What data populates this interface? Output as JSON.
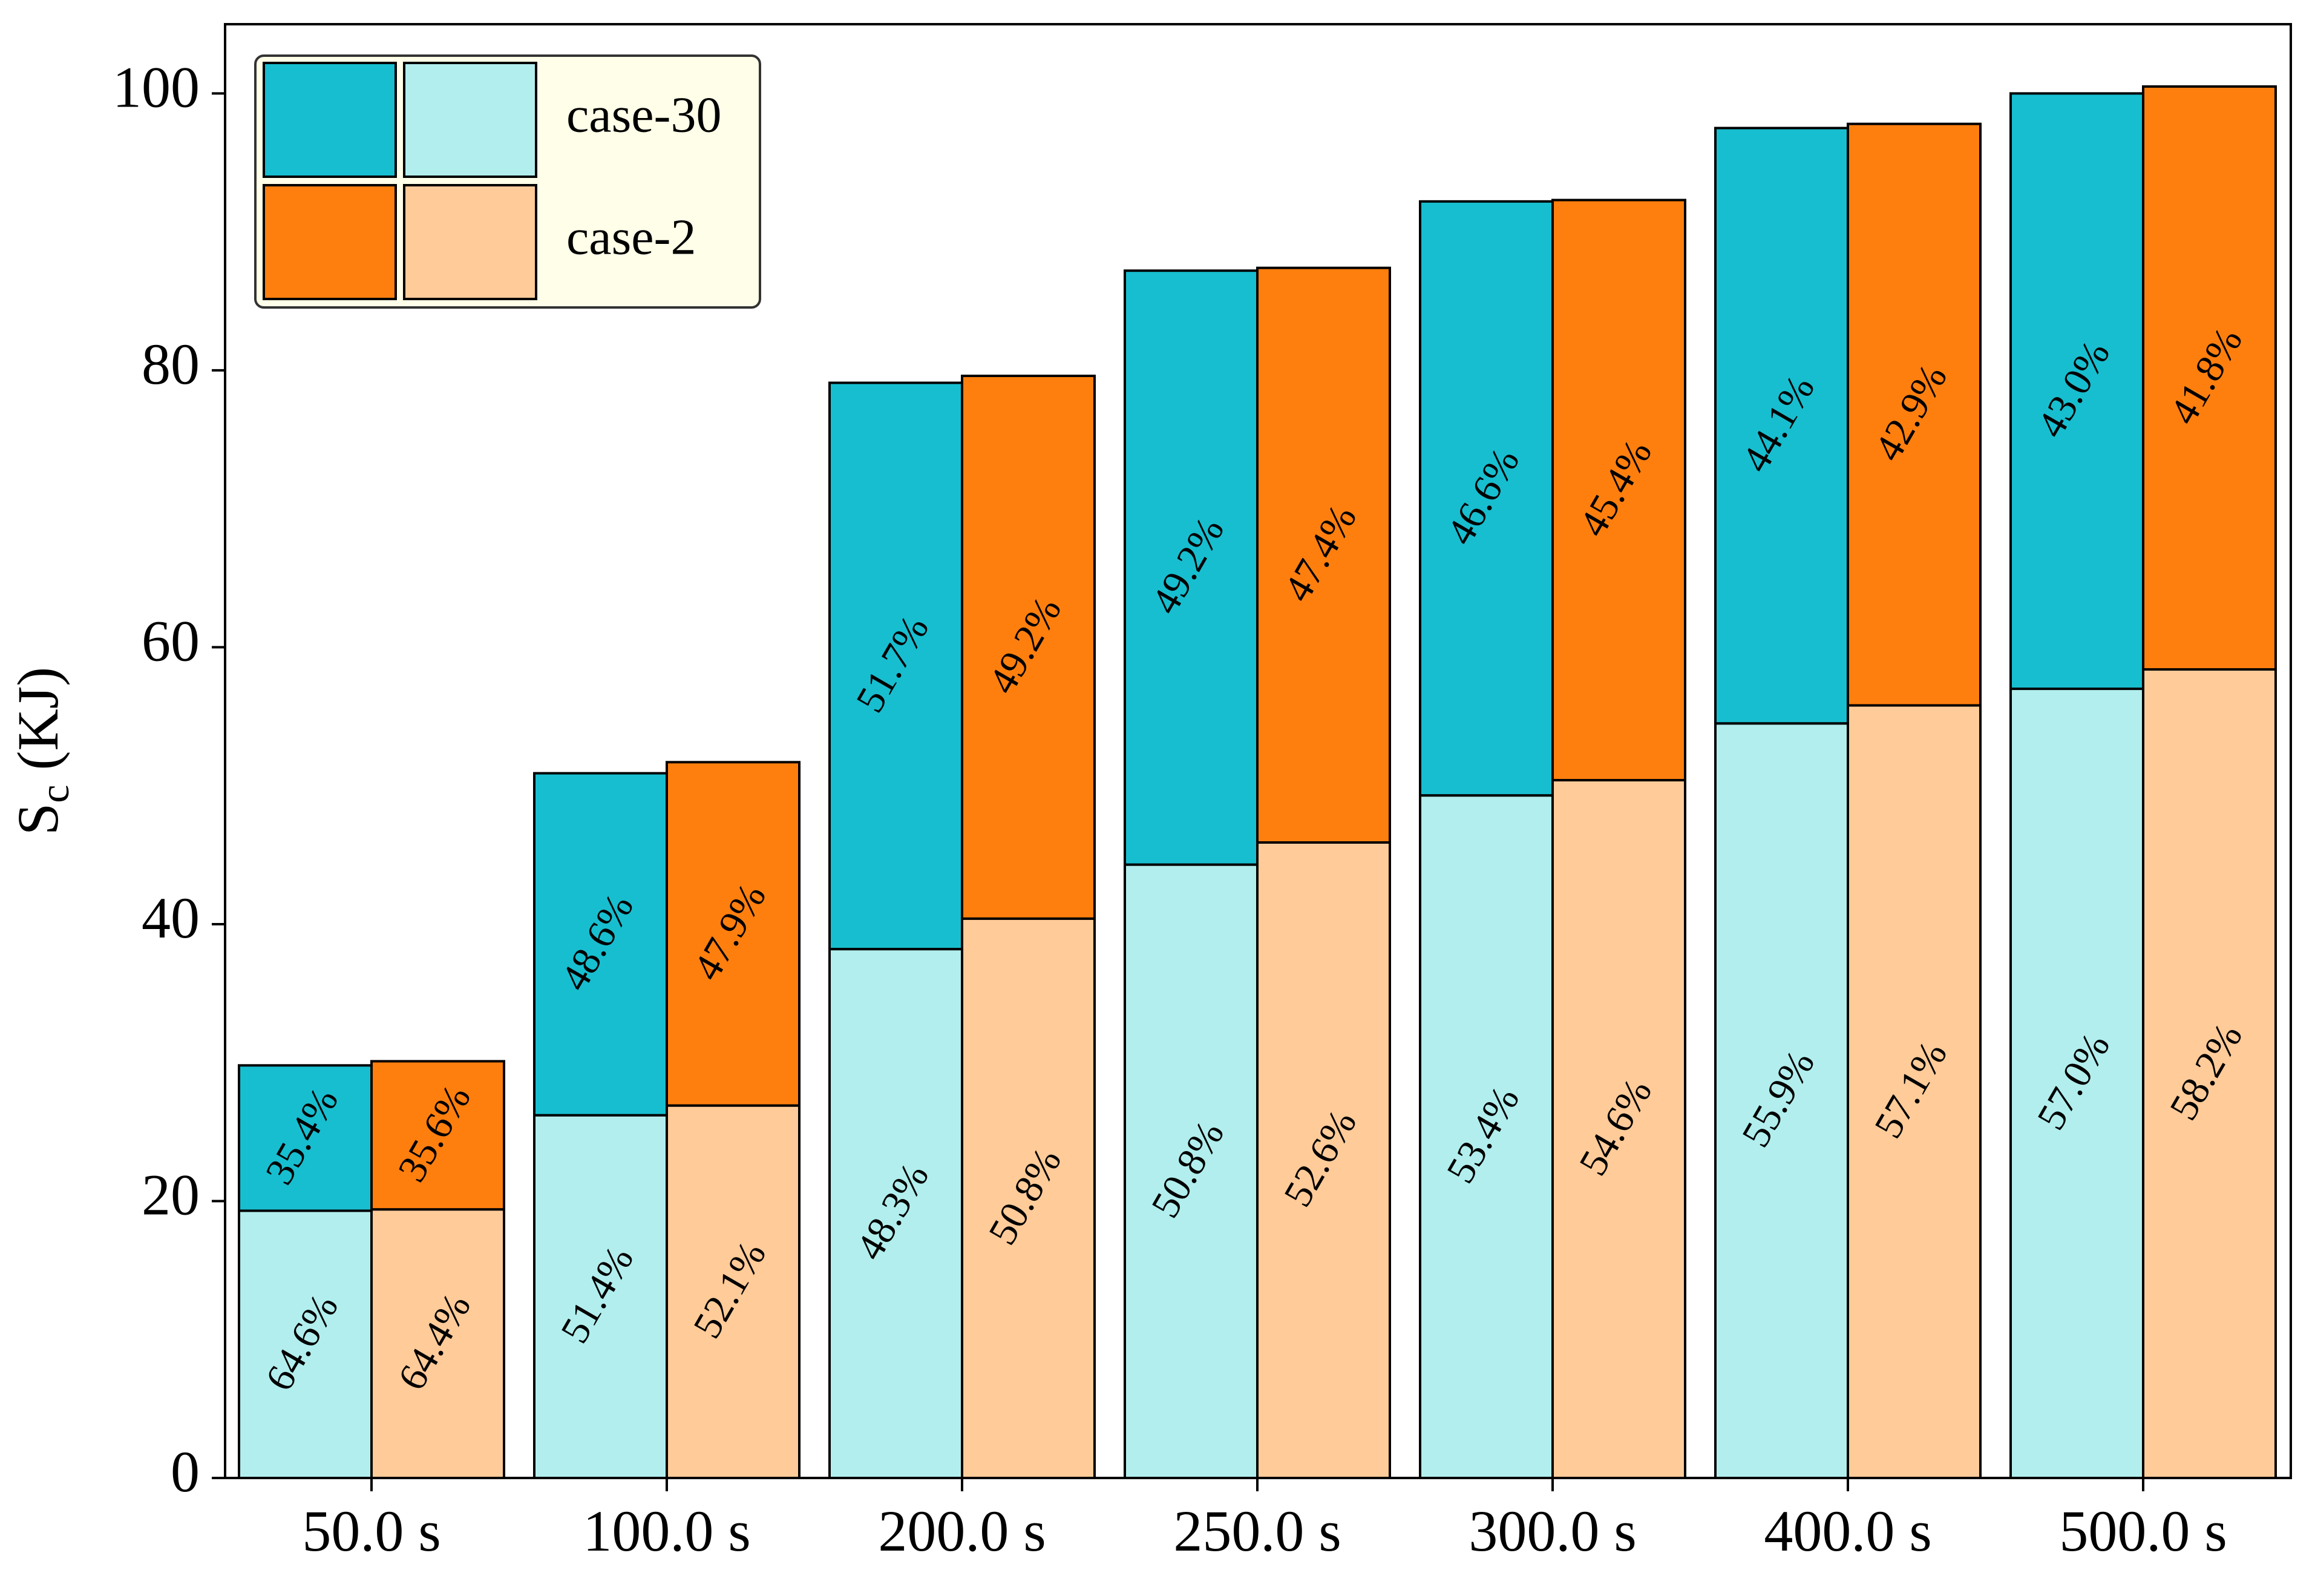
{
  "chart_data": {
    "type": "bar",
    "stacked": true,
    "grouped": true,
    "categories": [
      "50.0 s",
      "100.0 s",
      "200.0 s",
      "250.0 s",
      "300.0 s",
      "400.0 s",
      "500.0 s"
    ],
    "ylabel": "S",
    "ylabel_subscript": "c",
    "ylabel_unit": " (KJ)",
    "ylim": [
      0,
      105
    ],
    "yticks": [
      0,
      20,
      40,
      60,
      80,
      100
    ],
    "grid": false,
    "legend_position": "top-left",
    "series": [
      {
        "name": "case-30",
        "colors": {
          "top": "#17becf",
          "bottom": "#b2eeee"
        },
        "totals": [
          29.8,
          50.9,
          79.1,
          87.2,
          92.2,
          97.5,
          100.0
        ],
        "bottom_values": [
          19.3,
          26.2,
          38.2,
          44.3,
          49.3,
          54.5,
          57.0
        ],
        "bottom_labels": [
          "64.6%",
          "51.4%",
          "48.3%",
          "50.8%",
          "53.4%",
          "55.9%",
          "57.0%"
        ],
        "top_labels": [
          "35.4%",
          "48.6%",
          "51.7%",
          "49.2%",
          "46.6%",
          "44.1%",
          "43.0%"
        ]
      },
      {
        "name": "case-2",
        "colors": {
          "top": "#ff7f0e",
          "bottom": "#ffcb99"
        },
        "totals": [
          30.1,
          51.7,
          79.6,
          87.4,
          92.3,
          97.8,
          100.5
        ],
        "bottom_values": [
          19.4,
          26.9,
          40.4,
          45.9,
          50.4,
          55.8,
          58.4
        ],
        "bottom_labels": [
          "64.4%",
          "52.1%",
          "50.8%",
          "52.6%",
          "54.6%",
          "57.1%",
          "58.2%"
        ],
        "top_labels": [
          "35.6%",
          "47.9%",
          "49.2%",
          "47.4%",
          "45.4%",
          "42.9%",
          "41.8%"
        ]
      }
    ]
  }
}
